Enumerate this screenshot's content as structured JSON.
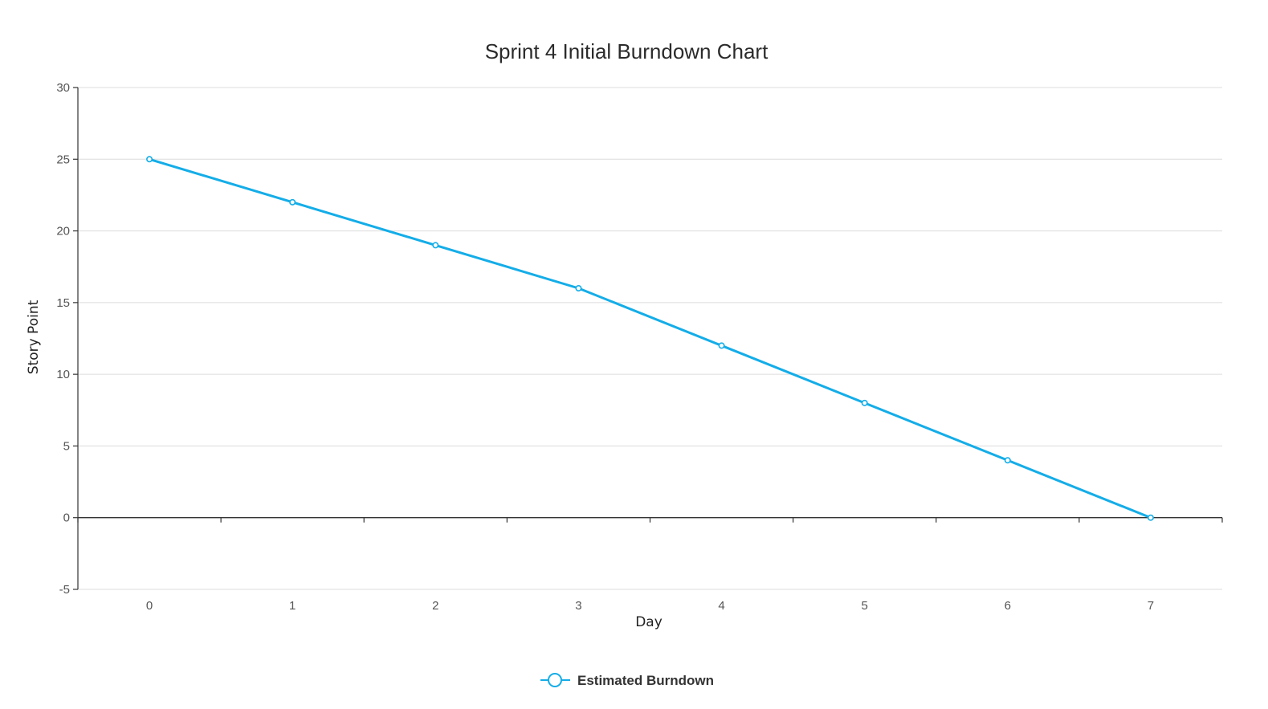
{
  "colors": {
    "series": "#14ade8",
    "grid": "#dcdcdc",
    "axis": "#333333",
    "background": "#ffffff"
  },
  "chart_data": {
    "type": "line",
    "title": "Sprint 4 Initial Burndown Chart",
    "xlabel": "Day",
    "ylabel": "Story Point",
    "x": [
      0,
      1,
      2,
      3,
      4,
      5,
      6,
      7
    ],
    "x_tick_labels": [
      "0",
      "1",
      "2",
      "3",
      "4",
      "5",
      "6",
      "7"
    ],
    "xlim": [
      -0.5,
      7.5
    ],
    "ylim": [
      -5,
      30
    ],
    "y_ticks": [
      -5,
      0,
      5,
      10,
      15,
      20,
      25,
      30
    ],
    "y_tick_labels": [
      "-5",
      "0",
      "5",
      "10",
      "15",
      "20",
      "25",
      "30"
    ],
    "grid": true,
    "legend_position": "bottom-center",
    "series": [
      {
        "name": "Estimated Burndown",
        "values": [
          25,
          22,
          19,
          16,
          12,
          8,
          4,
          0
        ],
        "marker": "open-circle"
      }
    ]
  }
}
